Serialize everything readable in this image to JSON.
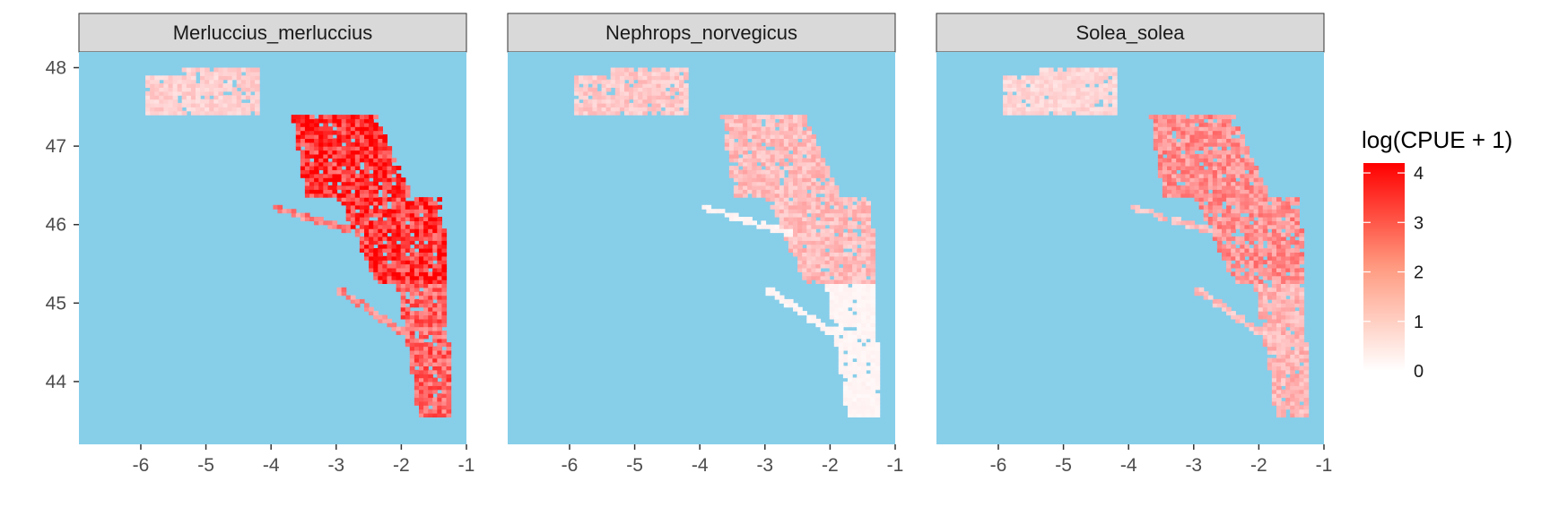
{
  "chart_data": {
    "type": "heatmap",
    "facets": [
      {
        "title": "Merluccius_merluccius"
      },
      {
        "title": "Nephrops_norvegicus"
      },
      {
        "title": "Solea_solea"
      }
    ],
    "x_ticks": [
      "-6",
      "-5",
      "-4",
      "-3",
      "-2",
      "-1"
    ],
    "x_tick_values": [
      -6,
      -5,
      -4,
      -3,
      -2,
      -1
    ],
    "y_ticks": [
      "48",
      "47",
      "46",
      "45",
      "44"
    ],
    "y_tick_values": [
      48,
      47,
      46,
      45,
      44
    ],
    "xlim": [
      -6.95,
      -1.0
    ],
    "ylim": [
      43.2,
      48.2
    ],
    "panel_background": "#87CEE9",
    "strip_background": "#D9D9D9",
    "legend": {
      "title": "log(CPUE + 1)",
      "ticks": [
        "4",
        "3",
        "2",
        "1",
        "0"
      ],
      "tick_values": [
        4,
        3,
        2,
        1,
        0
      ],
      "range": [
        0,
        4.2
      ],
      "color_low": "#FFFFFF",
      "color_high": "#FF0000",
      "position": "right"
    },
    "region_summary": [
      {
        "facet": "Merluccius_merluccius",
        "northern_shelf": 0.6,
        "coastal_band": 1.8,
        "central_shelf": 3.3,
        "southern_coast": 2.4
      },
      {
        "facet": "Nephrops_norvegicus",
        "northern_shelf": 0.7,
        "coastal_band": 0.1,
        "central_shelf": 0.9,
        "southern_coast": 0.1
      },
      {
        "facet": "Solea_solea",
        "northern_shelf": 0.5,
        "coastal_band": 0.8,
        "central_shelf": 1.6,
        "southern_coast": 1.0
      }
    ]
  }
}
